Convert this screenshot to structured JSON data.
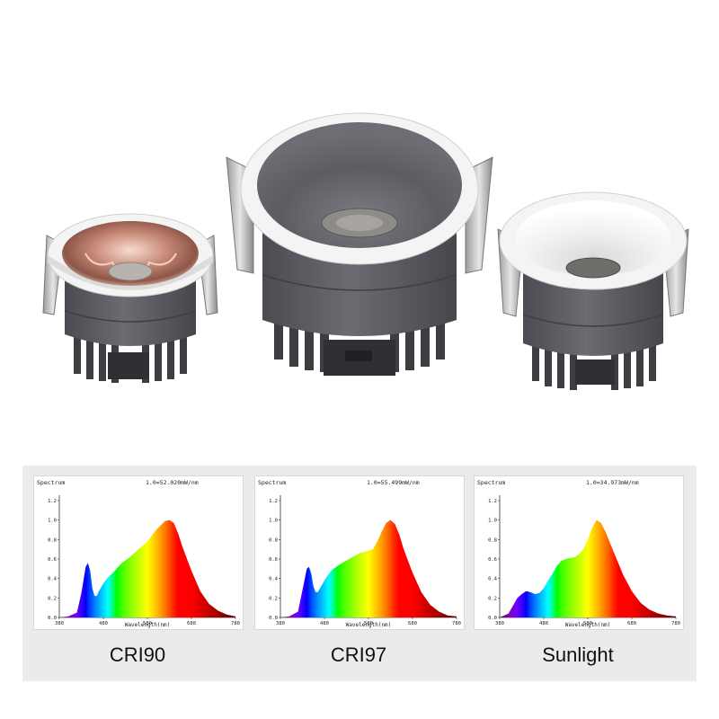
{
  "products": [
    {
      "name": "downlight-small-rose-gold",
      "reflector": "rose-gold-faceted",
      "body_color": "#585a5f",
      "trim_color": "#f4f4f4"
    },
    {
      "name": "downlight-large-grey",
      "reflector": "dark-grey-cone",
      "body_color": "#5a5c61",
      "trim_color": "#f4f4f4"
    },
    {
      "name": "downlight-small-white",
      "reflector": "white-cone",
      "body_color": "#5a5c61",
      "trim_color": "#f4f4f4"
    }
  ],
  "chart_data": [
    {
      "type": "area",
      "title": "Spectrum",
      "annotation": "1.0=52.020mW/nm",
      "xlabel": "Wavelength(nm)",
      "xlim": [
        380,
        780
      ],
      "ylim": [
        0,
        1.2
      ],
      "xticks": [
        "380",
        "480",
        "580",
        "680",
        "780"
      ],
      "yticks": [
        "0.0",
        "0.2",
        "0.4",
        "0.6",
        "0.8",
        "1.0",
        "1.2"
      ],
      "caption": "CRI90",
      "x": [
        380,
        400,
        420,
        430,
        440,
        445,
        450,
        455,
        460,
        465,
        470,
        480,
        490,
        500,
        510,
        520,
        540,
        560,
        580,
        600,
        620,
        630,
        640,
        650,
        660,
        680,
        700,
        720,
        740,
        760,
        780
      ],
      "y": [
        0,
        0.01,
        0.05,
        0.25,
        0.52,
        0.56,
        0.48,
        0.3,
        0.22,
        0.22,
        0.27,
        0.35,
        0.41,
        0.45,
        0.5,
        0.55,
        0.62,
        0.7,
        0.78,
        0.9,
        0.99,
        1.0,
        0.97,
        0.86,
        0.72,
        0.48,
        0.27,
        0.14,
        0.07,
        0.03,
        0.01
      ]
    },
    {
      "type": "area",
      "title": "Spectrum",
      "annotation": "1.0=55.499mW/nm",
      "xlabel": "Wavelength(nm)",
      "xlim": [
        380,
        780
      ],
      "ylim": [
        0,
        1.2
      ],
      "xticks": [
        "380",
        "480",
        "580",
        "680",
        "780"
      ],
      "yticks": [
        "0.0",
        "0.2",
        "0.4",
        "0.6",
        "0.8",
        "1.0",
        "1.2"
      ],
      "caption": "CRI97",
      "x": [
        380,
        400,
        420,
        430,
        440,
        445,
        450,
        455,
        460,
        465,
        470,
        480,
        490,
        500,
        510,
        520,
        540,
        560,
        575,
        590,
        600,
        610,
        620,
        630,
        640,
        650,
        660,
        680,
        700,
        720,
        740,
        760,
        780
      ],
      "y": [
        0,
        0.01,
        0.06,
        0.28,
        0.5,
        0.52,
        0.45,
        0.32,
        0.26,
        0.26,
        0.3,
        0.38,
        0.45,
        0.5,
        0.53,
        0.56,
        0.61,
        0.66,
        0.68,
        0.7,
        0.78,
        0.88,
        0.97,
        1.0,
        0.96,
        0.85,
        0.7,
        0.46,
        0.26,
        0.13,
        0.06,
        0.02,
        0.01
      ]
    },
    {
      "type": "area",
      "title": "Spectrum",
      "annotation": "1.0=34.973mW/nm",
      "xlabel": "Wavelength(nm)",
      "xlim": [
        380,
        780
      ],
      "ylim": [
        0,
        1.2
      ],
      "xticks": [
        "380",
        "480",
        "580",
        "680",
        "780"
      ],
      "yticks": [
        "0.0",
        "0.2",
        "0.4",
        "0.6",
        "0.8",
        "1.0",
        "1.2"
      ],
      "caption": "Sunlight",
      "x": [
        380,
        400,
        410,
        420,
        430,
        440,
        450,
        460,
        470,
        480,
        490,
        500,
        510,
        520,
        530,
        540,
        550,
        560,
        570,
        580,
        590,
        600,
        610,
        620,
        640,
        660,
        680,
        700,
        720,
        740,
        760,
        780
      ],
      "y": [
        0,
        0.04,
        0.12,
        0.2,
        0.24,
        0.27,
        0.26,
        0.24,
        0.25,
        0.3,
        0.38,
        0.45,
        0.53,
        0.58,
        0.6,
        0.61,
        0.62,
        0.65,
        0.7,
        0.8,
        0.92,
        1.0,
        0.97,
        0.88,
        0.66,
        0.44,
        0.27,
        0.15,
        0.08,
        0.04,
        0.02,
        0.01
      ]
    }
  ]
}
